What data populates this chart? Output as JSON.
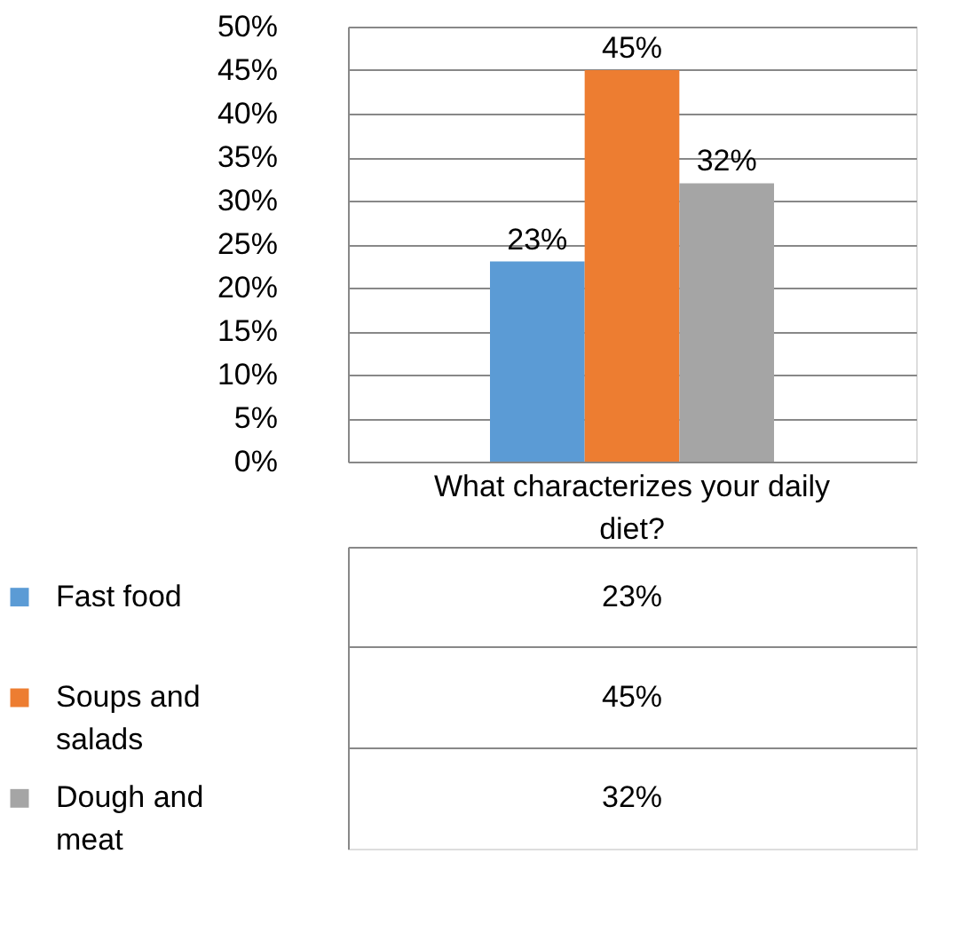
{
  "chart_data": {
    "type": "bar",
    "categories": [
      "What characterizes your daily diet?"
    ],
    "series": [
      {
        "name": "Fast food",
        "color": "#5b9bd5",
        "values": [
          23
        ],
        "value_labels": [
          "23%"
        ]
      },
      {
        "name": "Soups and salads",
        "color": "#ed7d31",
        "values": [
          45
        ],
        "value_labels": [
          "45%"
        ]
      },
      {
        "name": "Dough and meat",
        "color": "#a5a5a5",
        "values": [
          32
        ],
        "value_labels": [
          "32%"
        ]
      }
    ],
    "ylim": [
      0,
      50
    ],
    "yticks": [
      {
        "value": 0,
        "label": "0%"
      },
      {
        "value": 5,
        "label": "5%"
      },
      {
        "value": 10,
        "label": "10%"
      },
      {
        "value": 15,
        "label": "15%"
      },
      {
        "value": 20,
        "label": "20%"
      },
      {
        "value": 25,
        "label": "25%"
      },
      {
        "value": 30,
        "label": "30%"
      },
      {
        "value": 35,
        "label": "35%"
      },
      {
        "value": 40,
        "label": "40%"
      },
      {
        "value": 45,
        "label": "45%"
      },
      {
        "value": 50,
        "label": "50%"
      }
    ],
    "grid": "y",
    "legend": "bottom"
  }
}
